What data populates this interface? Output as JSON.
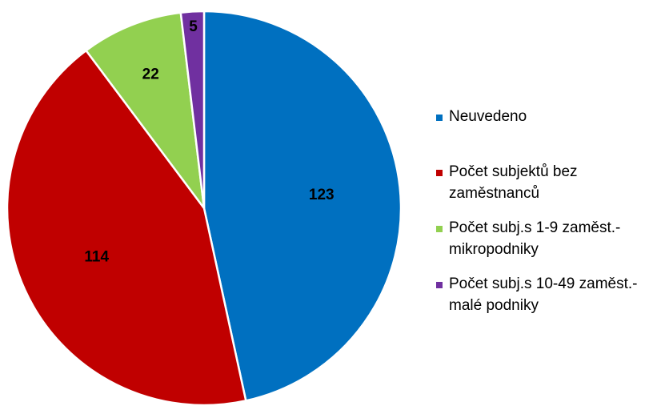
{
  "chart_data": {
    "type": "pie",
    "categories": [
      "Neuvedeno",
      "Počet subjektů bez zaměstnanců",
      "Počet subj.s 1-9 zaměst.- mikropodniky",
      "Počet subj.s 10-49 zaměst.- malé podniky"
    ],
    "values": [
      123,
      114,
      22,
      5
    ],
    "colors": [
      "#0070c0",
      "#c00000",
      "#92d050",
      "#7030a0"
    ],
    "legend": "right"
  }
}
